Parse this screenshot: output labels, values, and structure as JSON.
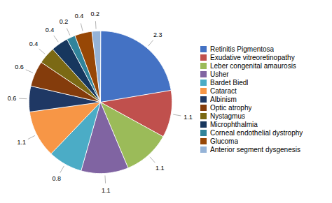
{
  "chart_data": {
    "type": "pie",
    "categories": [
      "Retinitis Pigmentosa",
      "Exudative vitreoretinopathy",
      "Leber congenital amaurosis",
      "Usher",
      "Bardet Biedl",
      "Cataract",
      "Albinism",
      "Optic atrophy",
      "Nystagmus",
      "Microphthalmia",
      "Corneal endothelial dystrophy",
      "Glucoma",
      "Anterior segment dysgenesis"
    ],
    "values": [
      2.3,
      1.1,
      1.1,
      1.1,
      0.8,
      1.1,
      0.6,
      0.6,
      0.4,
      0.4,
      0.2,
      0.4,
      0.2
    ],
    "colors": [
      "#4472C4",
      "#C0504D",
      "#9BBB59",
      "#8064A2",
      "#4BACC6",
      "#F79646",
      "#1F3864",
      "#843C0C",
      "#7B6914",
      "#17375E",
      "#31849B",
      "#974706",
      "#95B3D7"
    ],
    "data_labels": true,
    "legend": "right"
  }
}
